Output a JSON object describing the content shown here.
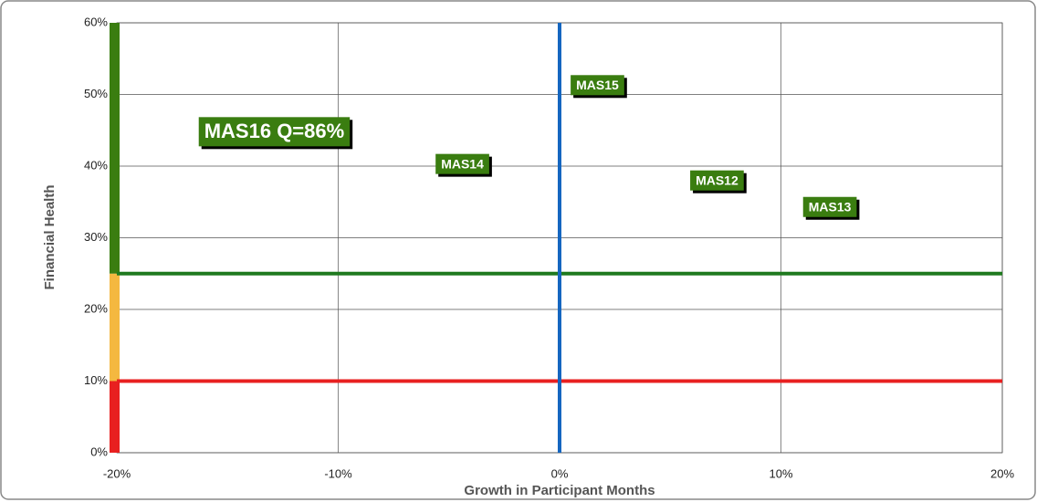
{
  "chart_data": {
    "type": "scatter",
    "xlabel": "Growth in Participant Months",
    "ylabel": "Financial Health",
    "xlim": [
      -20,
      20
    ],
    "ylim": [
      0,
      60
    ],
    "xticks": [
      {
        "value": -20,
        "label": "-20%"
      },
      {
        "value": -10,
        "label": "-10%"
      },
      {
        "value": 0,
        "label": "0%"
      },
      {
        "value": 10,
        "label": "10%"
      },
      {
        "value": 20,
        "label": "20%"
      }
    ],
    "yticks": [
      {
        "value": 0,
        "label": "0%"
      },
      {
        "value": 10,
        "label": "10%"
      },
      {
        "value": 20,
        "label": "20%"
      },
      {
        "value": 30,
        "label": "30%"
      },
      {
        "value": 40,
        "label": "40%"
      },
      {
        "value": 50,
        "label": "50%"
      },
      {
        "value": 60,
        "label": "60%"
      }
    ],
    "grid": true,
    "color": "#3a7d10",
    "points": [
      {
        "label": "MAS16 Q=86%",
        "x": -16.3,
        "y": 44.8,
        "highlight": true
      },
      {
        "label": "MAS14",
        "x": -5.6,
        "y": 40.3
      },
      {
        "label": "MAS15",
        "x": 0.5,
        "y": 51.3
      },
      {
        "label": "MAS12",
        "x": 5.9,
        "y": 38
      },
      {
        "label": "MAS13",
        "x": 11,
        "y": 34.3
      }
    ],
    "bands": [
      {
        "from": 0,
        "to": 10,
        "color": "#e82020"
      },
      {
        "from": 10,
        "to": 25,
        "color": "#f4b840"
      },
      {
        "from": 25,
        "to": 60,
        "color": "#3a7d10"
      }
    ],
    "hlines": [
      {
        "value": 25,
        "color": "#1f7a1f"
      },
      {
        "value": 10,
        "color": "#e82020"
      }
    ],
    "vlines": [
      {
        "value": 0,
        "color": "#1566c0"
      }
    ]
  }
}
